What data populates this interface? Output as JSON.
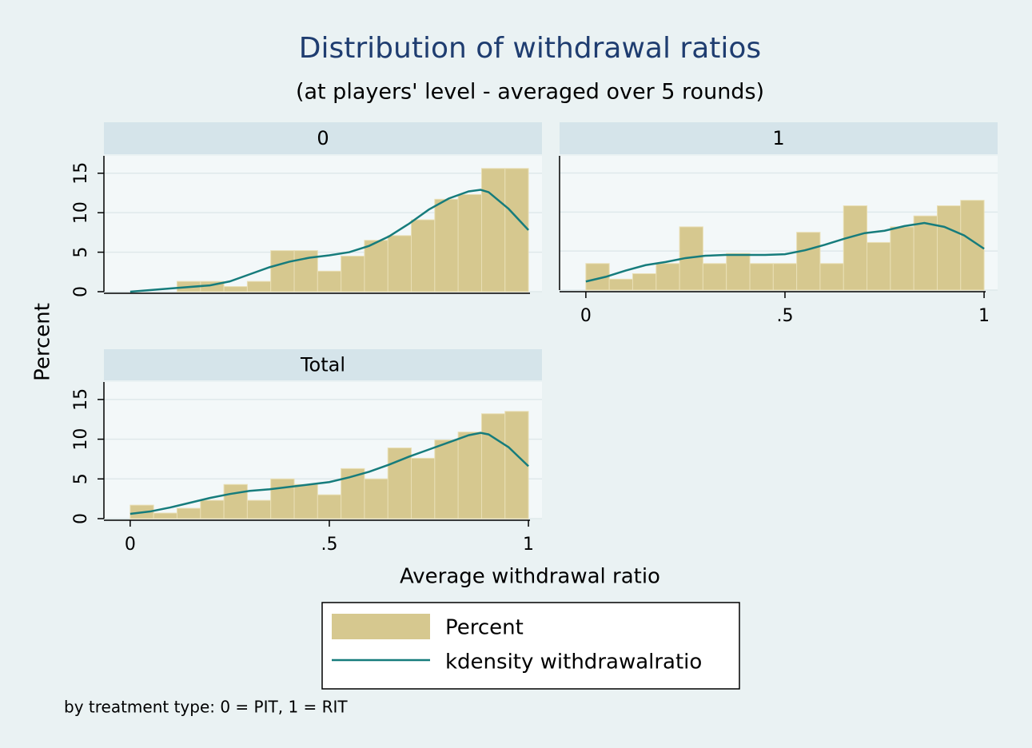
{
  "figure": {
    "title": "Distribution of withdrawal ratios",
    "subtitle": "(at players' level - averaged over 5 rounds)",
    "x_label": "Average withdrawal ratio",
    "y_label": "Percent",
    "note": "by treatment type: 0 = PIT, 1 = RIT",
    "legend": [
      {
        "name": "Percent",
        "color": "#d6c88f"
      },
      {
        "name": "kdensity withdrawalratio",
        "color": "#167c7c"
      }
    ]
  },
  "chart_data": [
    {
      "type": "histogram",
      "title": "0",
      "bins": [
        0,
        0.0588,
        0.1176,
        0.1765,
        0.2353,
        0.2941,
        0.3529,
        0.4118,
        0.4706,
        0.5294,
        0.5882,
        0.6471,
        0.7059,
        0.7647,
        0.8235,
        0.8824,
        0.9412,
        1
      ],
      "values": [
        0,
        0,
        1.3,
        1.3,
        0.65,
        1.3,
        5.2,
        5.2,
        2.6,
        4.5,
        6.5,
        7.1,
        9.1,
        11.7,
        12.3,
        15.6,
        15.6
      ],
      "kdensity": {
        "x": [
          0,
          0.1,
          0.2,
          0.25,
          0.3,
          0.35,
          0.4,
          0.45,
          0.5,
          0.55,
          0.6,
          0.65,
          0.7,
          0.75,
          0.8,
          0.85,
          0.88,
          0.9,
          0.95,
          1
        ],
        "values": [
          0,
          0.4,
          0.8,
          1.3,
          2.2,
          3.1,
          3.8,
          4.3,
          4.6,
          5.0,
          5.8,
          7.0,
          8.6,
          10.4,
          11.8,
          12.7,
          12.9,
          12.6,
          10.5,
          7.8
        ]
      },
      "xlim": [
        -0.066,
        1.034
      ],
      "ylim": [
        0,
        17.2
      ],
      "yticks": [
        0,
        5,
        10,
        15
      ],
      "grid": true
    },
    {
      "type": "histogram",
      "title": "1",
      "bins": [
        0,
        0.0588,
        0.1176,
        0.1765,
        0.2353,
        0.2941,
        0.3529,
        0.4118,
        0.4706,
        0.5294,
        0.5882,
        0.6471,
        0.7059,
        0.7647,
        0.8235,
        0.8824,
        0.9412,
        1
      ],
      "values": [
        3.4,
        1.4,
        2.1,
        3.4,
        8.1,
        3.4,
        4.7,
        3.4,
        3.4,
        7.4,
        3.4,
        10.8,
        6.1,
        8.1,
        9.5,
        10.8,
        11.5
      ],
      "kdensity": {
        "x": [
          0,
          0.05,
          0.1,
          0.15,
          0.2,
          0.25,
          0.3,
          0.35,
          0.4,
          0.45,
          0.5,
          0.55,
          0.6,
          0.65,
          0.7,
          0.75,
          0.8,
          0.85,
          0.9,
          0.95,
          1
        ],
        "values": [
          1.1,
          1.7,
          2.5,
          3.2,
          3.6,
          4.1,
          4.4,
          4.5,
          4.5,
          4.5,
          4.6,
          5.1,
          5.8,
          6.6,
          7.3,
          7.6,
          8.2,
          8.6,
          8.1,
          7.0,
          5.3
        ]
      },
      "xlim": [
        -0.066,
        1.034
      ],
      "ylim": [
        0,
        17.2
      ],
      "yticks": [
        0,
        5,
        10,
        15
      ],
      "xticks": [
        0,
        {
          "value": 0.5,
          "label": ".5"
        },
        1
      ],
      "grid": true
    },
    {
      "type": "histogram",
      "title": "Total",
      "bins": [
        0,
        0.0588,
        0.1176,
        0.1765,
        0.2353,
        0.2941,
        0.3529,
        0.4118,
        0.4706,
        0.5294,
        0.5882,
        0.6471,
        0.7059,
        0.7647,
        0.8235,
        0.8824,
        0.9412,
        1
      ],
      "values": [
        1.7,
        0.7,
        1.3,
        2.3,
        4.3,
        2.3,
        5.0,
        4.3,
        3.0,
        6.3,
        5.0,
        8.9,
        7.6,
        9.9,
        10.9,
        13.2,
        13.5
      ],
      "kdensity": {
        "x": [
          0,
          0.05,
          0.1,
          0.15,
          0.2,
          0.25,
          0.3,
          0.35,
          0.4,
          0.45,
          0.5,
          0.55,
          0.6,
          0.65,
          0.7,
          0.75,
          0.8,
          0.85,
          0.88,
          0.9,
          0.95,
          1
        ],
        "values": [
          0.6,
          0.9,
          1.4,
          2.0,
          2.6,
          3.1,
          3.5,
          3.7,
          4.0,
          4.3,
          4.6,
          5.2,
          5.9,
          6.8,
          7.8,
          8.7,
          9.6,
          10.5,
          10.8,
          10.6,
          9.0,
          6.6
        ]
      },
      "xlim": [
        -0.066,
        1.034
      ],
      "ylim": [
        0,
        17.2
      ],
      "yticks": [
        0,
        5,
        10,
        15
      ],
      "xticks": [
        0,
        {
          "value": 0.5,
          "label": ".5"
        },
        1
      ],
      "grid": true
    }
  ]
}
